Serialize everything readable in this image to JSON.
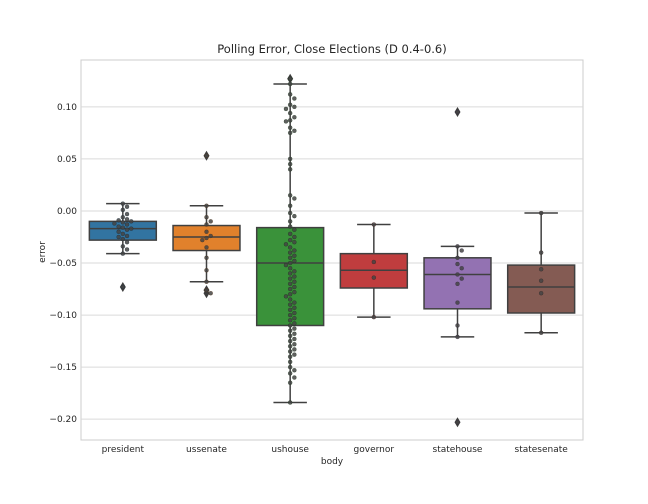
{
  "chart_data": {
    "type": "box",
    "title": "Polling Error, Close Elections (D 0.4-0.6)",
    "xlabel": "body",
    "ylabel": "error",
    "ylim": [
      -0.22,
      0.145
    ],
    "yticks": [
      0.1,
      0.05,
      0.0,
      -0.05,
      -0.1,
      -0.15,
      -0.2
    ],
    "ytick_labels": [
      "0.10",
      "0.05",
      "0.00",
      "−0.05",
      "−0.10",
      "−0.15",
      "−0.20"
    ],
    "grid": true,
    "categories": [
      "president",
      "ussenate",
      "ushouse",
      "governor",
      "statehouse",
      "statesenate"
    ],
    "colors": [
      "#3274a1",
      "#e1812c",
      "#3a923a",
      "#c03d3e",
      "#9372b2",
      "#845b53"
    ],
    "boxes": [
      {
        "category": "president",
        "whislo": -0.041,
        "q1": -0.028,
        "med": -0.017,
        "q3": -0.01,
        "whishi": 0.007,
        "fliers": [
          -0.073
        ],
        "points": [
          0.007,
          0.004,
          0.001,
          -0.003,
          -0.006,
          -0.008,
          -0.009,
          -0.01,
          -0.011,
          -0.012,
          -0.013,
          -0.015,
          -0.016,
          -0.017,
          -0.018,
          -0.02,
          -0.022,
          -0.024,
          -0.025,
          -0.027,
          -0.03,
          -0.034,
          -0.037,
          -0.041,
          -0.073
        ]
      },
      {
        "category": "ussenate",
        "whislo": -0.068,
        "q1": -0.038,
        "med": -0.025,
        "q3": -0.014,
        "whishi": 0.005,
        "fliers": [
          0.053,
          -0.076,
          -0.079
        ],
        "points": [
          0.053,
          0.005,
          -0.006,
          -0.01,
          -0.013,
          -0.02,
          -0.024,
          -0.026,
          -0.028,
          -0.035,
          -0.045,
          -0.057,
          -0.068,
          -0.076,
          -0.079
        ]
      },
      {
        "category": "ushouse",
        "whislo": -0.184,
        "q1": -0.11,
        "med": -0.05,
        "q3": -0.016,
        "whishi": 0.122,
        "fliers": [
          0.127
        ],
        "points": [
          0.127,
          0.122,
          0.112,
          0.108,
          0.102,
          0.1,
          0.098,
          0.094,
          0.09,
          0.087,
          0.086,
          0.08,
          0.077,
          0.075,
          0.05,
          0.045,
          0.04,
          0.015,
          0.012,
          0.005,
          -0.002,
          -0.005,
          -0.01,
          -0.015,
          -0.018,
          -0.022,
          -0.025,
          -0.028,
          -0.03,
          -0.032,
          -0.035,
          -0.038,
          -0.04,
          -0.043,
          -0.045,
          -0.048,
          -0.05,
          -0.052,
          -0.055,
          -0.058,
          -0.06,
          -0.063,
          -0.065,
          -0.068,
          -0.07,
          -0.073,
          -0.075,
          -0.078,
          -0.08,
          -0.082,
          -0.085,
          -0.088,
          -0.09,
          -0.093,
          -0.095,
          -0.098,
          -0.1,
          -0.103,
          -0.105,
          -0.108,
          -0.11,
          -0.113,
          -0.115,
          -0.118,
          -0.12,
          -0.123,
          -0.125,
          -0.128,
          -0.13,
          -0.133,
          -0.135,
          -0.138,
          -0.14,
          -0.145,
          -0.15,
          -0.153,
          -0.156,
          -0.16,
          -0.165,
          -0.184
        ]
      },
      {
        "category": "governor",
        "whislo": -0.102,
        "q1": -0.074,
        "med": -0.057,
        "q3": -0.041,
        "whishi": -0.013,
        "fliers": [],
        "points": [
          -0.013,
          -0.049,
          -0.064,
          -0.102
        ]
      },
      {
        "category": "statehouse",
        "whislo": -0.121,
        "q1": -0.094,
        "med": -0.061,
        "q3": -0.045,
        "whishi": -0.034,
        "fliers": [
          0.095,
          -0.203
        ],
        "points": [
          0.095,
          -0.034,
          -0.038,
          -0.045,
          -0.051,
          -0.055,
          -0.061,
          -0.065,
          -0.07,
          -0.088,
          -0.11,
          -0.121,
          -0.203
        ]
      },
      {
        "category": "statesenate",
        "whislo": -0.117,
        "q1": -0.098,
        "med": -0.073,
        "q3": -0.052,
        "whishi": -0.002,
        "fliers": [],
        "points": [
          -0.002,
          -0.04,
          -0.056,
          -0.067,
          -0.079,
          -0.117
        ]
      }
    ]
  }
}
